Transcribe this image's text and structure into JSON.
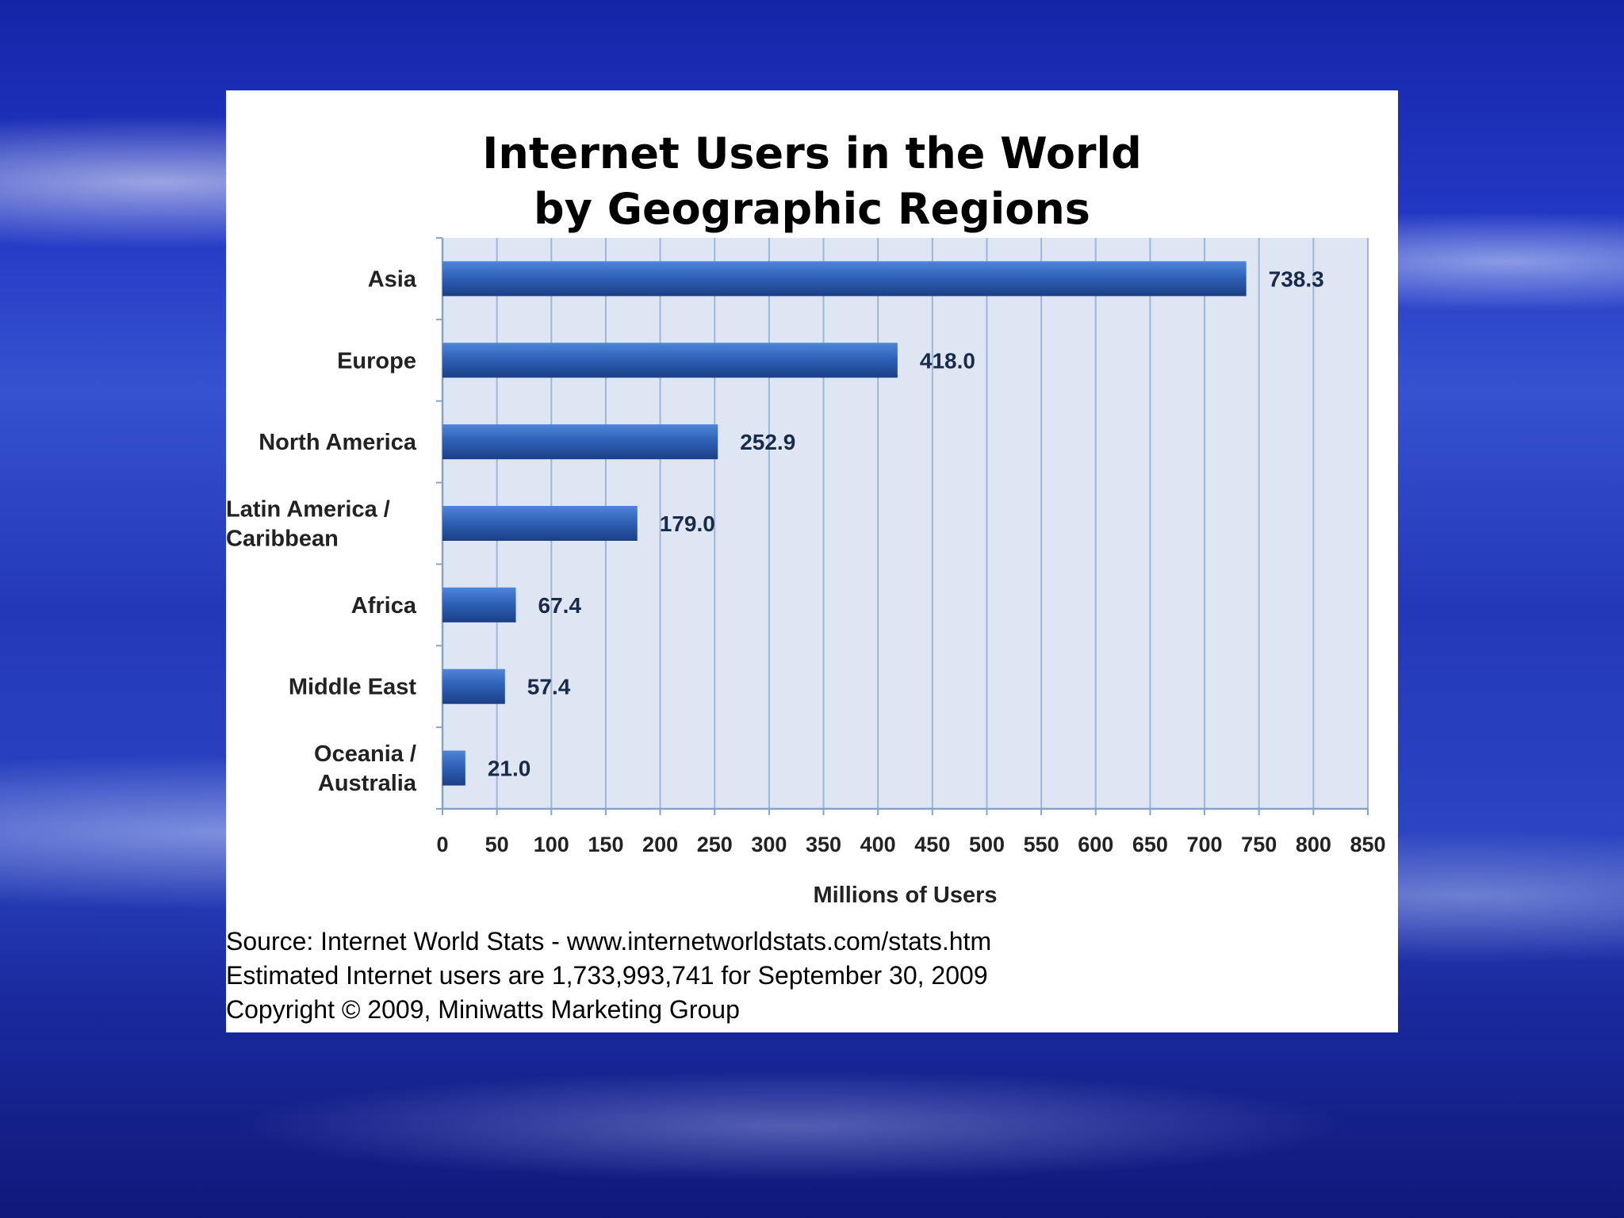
{
  "chart_data": {
    "type": "bar",
    "orientation": "horizontal",
    "title": [
      "Internet Users in the World",
      "by Geographic Regions"
    ],
    "categories": [
      [
        "Asia"
      ],
      [
        "Europe"
      ],
      [
        "North America"
      ],
      [
        "Latin America /",
        " Caribbean"
      ],
      [
        "Africa"
      ],
      [
        "Middle East"
      ],
      [
        "Oceania  /",
        "Australia"
      ]
    ],
    "values": [
      738.3,
      418.0,
      252.9,
      179.0,
      67.4,
      57.4,
      21.0
    ],
    "value_labels": [
      "738.3",
      "418.0",
      "252.9",
      "179.0",
      "67.4",
      "57.4",
      "21.0"
    ],
    "xlabel": "Millions of Users",
    "xlim": [
      0,
      850
    ],
    "xticks": [
      "0",
      "50",
      "100",
      "150",
      "200",
      "250",
      "300",
      "350",
      "400",
      "450",
      "500",
      "550",
      "600",
      "650",
      "700",
      "750",
      "800",
      "850"
    ],
    "grid": true,
    "colors": {
      "bar": "#2f62b8",
      "bar_dark": "#1b3f86",
      "plot_bg": "#dde6f2",
      "grid": "#9fb6d6"
    }
  },
  "source": {
    "lines": [
      "Source: Internet World Stats - www.internetworldstats.com/stats.htm",
      "Estimated Internet users are 1,733,993,741 for September 30, 2009",
      "Copyright © 2009, Miniwatts Marketing Group"
    ]
  }
}
